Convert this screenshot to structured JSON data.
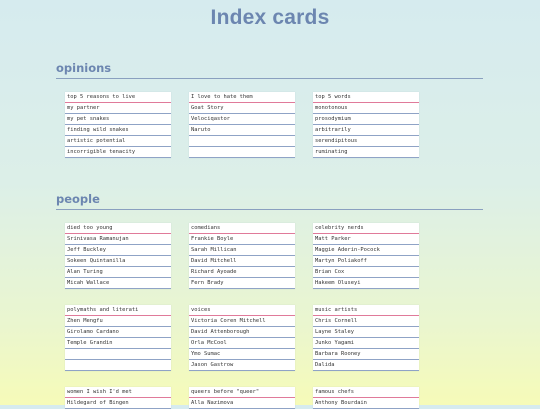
{
  "page": {
    "title": "Index cards"
  },
  "sections": [
    {
      "id": "opinions",
      "heading": "opinions",
      "cards": [
        {
          "title": "top 5 reasons to live",
          "items": [
            "my partner",
            "my pet snakes",
            "finding wild snakes",
            "artistic potential",
            "incorrigible tenacity"
          ]
        },
        {
          "title": "I love to hate them",
          "items": [
            "Goat Story",
            "Velociqastor",
            "Naruto",
            "",
            ""
          ]
        },
        {
          "title": "top 5 words",
          "items": [
            "monotonous",
            "prosodymium",
            "arbitrarily",
            "serendipitous",
            "ruminating"
          ]
        }
      ]
    },
    {
      "id": "people",
      "heading": "people",
      "cards": [
        {
          "title": "died too young",
          "items": [
            "Srinivasa Ramanujan",
            "Jeff Buckley",
            "Sokeen Quintanilla",
            "Alan Turing",
            "Micah Wallace"
          ]
        },
        {
          "title": "comedians",
          "items": [
            "Frankie Boyle",
            "Sarah Millican",
            "David Mitchell",
            "Richard Ayoade",
            "Fern Brady"
          ]
        },
        {
          "title": "celebrity nerds",
          "items": [
            "Matt Parker",
            "Maggie Aderin-Pocock",
            "Martyn Poliakoff",
            "Brian Cox",
            "Hakeem Oluseyi"
          ]
        },
        {
          "title": "polymaths and literati",
          "items": [
            "Zhen Mengfu",
            "Girolamo Cardano",
            "Temple Grandin",
            "",
            ""
          ]
        },
        {
          "title": "voices",
          "items": [
            "Victoria Coren Mitchell",
            "David Attenborough",
            "Orla McCool",
            "Ymo Sumac",
            "Jason Gastrow"
          ]
        },
        {
          "title": "music artists",
          "items": [
            "Chris Cornell",
            "Layne Staley",
            "Junko Yagami",
            "Barbara Rooney",
            "Dalida"
          ]
        },
        {
          "title": "women I wish I'd met",
          "items": [
            "Hildegard of Bingen"
          ]
        },
        {
          "title": "queers before \"queer\"",
          "items": [
            "Alla Nazimova"
          ]
        },
        {
          "title": "famous chefs",
          "items": [
            "Anthony Bourdain"
          ]
        }
      ]
    }
  ]
}
